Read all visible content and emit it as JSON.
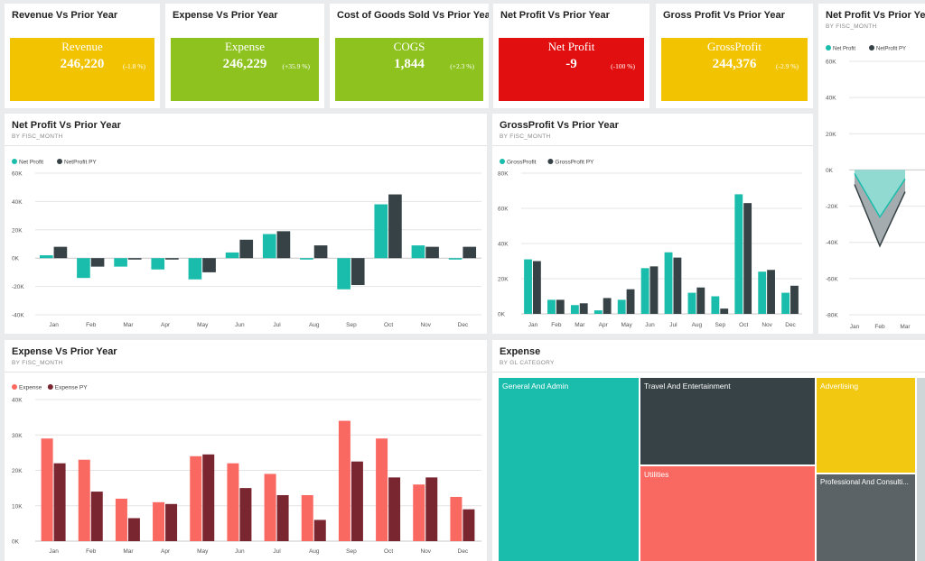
{
  "kpis": [
    {
      "title": "Revenue Vs Prior Year",
      "label": "Revenue",
      "value": "246,220",
      "delta": "(-1.8 %)",
      "color": "#f2c300"
    },
    {
      "title": "Expense Vs Prior Year",
      "label": "Expense",
      "value": "246,229",
      "delta": "(+35.9 %)",
      "color": "#8dc21f"
    },
    {
      "title": "Cost of Goods Sold Vs Prior Year",
      "label": "COGS",
      "value": "1,844",
      "delta": "(+2.3 %)",
      "color": "#8dc21f"
    },
    {
      "title": "Net Profit Vs Prior Year",
      "label": "Net Profit",
      "value": "-9",
      "delta": "(-100 %)",
      "color": "#e10f0f"
    },
    {
      "title": "Gross Profit Vs Prior Year",
      "label": "GrossProfit",
      "value": "244,376",
      "delta": "(-2.9 %)",
      "color": "#f2c300"
    }
  ],
  "panels": {
    "net_profit": {
      "title": "Net Profit Vs Prior Year",
      "subtitle": "BY FISC_MONTH"
    },
    "gross_profit": {
      "title": "GrossProfit Vs Prior Year",
      "subtitle": "BY FISC_MONTH"
    },
    "net_profit_area": {
      "title": "Net Profit Vs Prior Year",
      "subtitle": "BY FISC_MONTH"
    },
    "expense": {
      "title": "Expense Vs Prior Year",
      "subtitle": "BY FISC_MONTH"
    },
    "expense_treemap": {
      "title": "Expense",
      "subtitle": "BY GL CATEGORY"
    }
  },
  "colors": {
    "teal": "#1abdac",
    "dark": "#364246",
    "salmon": "#fa6862",
    "maroon": "#7a2630",
    "yellow": "#f2c811",
    "gray": "#5b6366",
    "grid": "#e4e4e4",
    "axis_text": "#555555"
  },
  "chart_data": [
    {
      "id": "net_profit",
      "type": "bar",
      "categories": [
        "Jan",
        "Feb",
        "Mar",
        "Apr",
        "May",
        "Jun",
        "Jul",
        "Aug",
        "Sep",
        "Oct",
        "Nov",
        "Dec"
      ],
      "series": [
        {
          "name": "Net Profit",
          "values": [
            2000,
            -14000,
            -6000,
            -8000,
            -15000,
            4000,
            17000,
            -1000,
            -22000,
            38000,
            9000,
            -1000
          ]
        },
        {
          "name": "NetProfit PY",
          "values": [
            8000,
            -6000,
            -1000,
            -1000,
            -10000,
            13000,
            19000,
            9000,
            -19000,
            45000,
            8000,
            8000
          ]
        }
      ],
      "yticks": [
        "60K",
        "40K",
        "20K",
        "0K",
        "-20K",
        "-40K"
      ],
      "ylim": [
        -40000,
        60000
      ],
      "legend": "top-left"
    },
    {
      "id": "gross_profit",
      "type": "bar",
      "categories": [
        "Jan",
        "Feb",
        "Mar",
        "Apr",
        "May",
        "Jun",
        "Jul",
        "Aug",
        "Sep",
        "Oct",
        "Nov",
        "Dec"
      ],
      "series": [
        {
          "name": "GrossProfit",
          "values": [
            31000,
            8000,
            5000,
            2000,
            8000,
            26000,
            35000,
            12000,
            10000,
            68000,
            24000,
            12000
          ]
        },
        {
          "name": "GrossProfit PY",
          "values": [
            30000,
            8000,
            6000,
            9000,
            14000,
            27000,
            32000,
            15000,
            3000,
            63000,
            25000,
            16000
          ]
        }
      ],
      "yticks": [
        "80K",
        "60K",
        "40K",
        "20K",
        "0K"
      ],
      "ylim": [
        0,
        80000
      ],
      "legend": "top-left"
    },
    {
      "id": "net_profit_area",
      "type": "area",
      "categories": [
        "Jan",
        "Feb",
        "Mar"
      ],
      "series": [
        {
          "name": "Net Profit",
          "values": [
            -2000,
            -26000,
            -5000
          ]
        },
        {
          "name": "NetProfit PY",
          "values": [
            -8000,
            -42000,
            -12000
          ]
        }
      ],
      "yticks": [
        "60K",
        "40K",
        "20K",
        "0K",
        "-20K",
        "-40K",
        "-60K",
        "-80K"
      ],
      "ylim": [
        -80000,
        60000
      ],
      "legend": "top-left"
    },
    {
      "id": "expense",
      "type": "bar",
      "categories": [
        "Jan",
        "Feb",
        "Mar",
        "Apr",
        "May",
        "Jun",
        "Jul",
        "Aug",
        "Sep",
        "Oct",
        "Nov",
        "Dec"
      ],
      "series": [
        {
          "name": "Expense",
          "values": [
            29000,
            23000,
            12000,
            11000,
            24000,
            22000,
            19000,
            13000,
            34000,
            29000,
            16000,
            12500
          ]
        },
        {
          "name": "Expense PY",
          "values": [
            22000,
            14000,
            6500,
            10500,
            24500,
            15000,
            13000,
            6000,
            22500,
            18000,
            18000,
            9000
          ]
        }
      ],
      "yticks": [
        "40K",
        "30K",
        "20K",
        "10K",
        "0K"
      ],
      "ylim": [
        0,
        40000
      ],
      "legend": "top-left"
    },
    {
      "id": "expense_treemap",
      "type": "treemap",
      "categories": [
        "General And Admin",
        "Travel And Entertainment",
        "Utilities",
        "Advertising",
        "Professional And Consulti..."
      ]
    }
  ]
}
